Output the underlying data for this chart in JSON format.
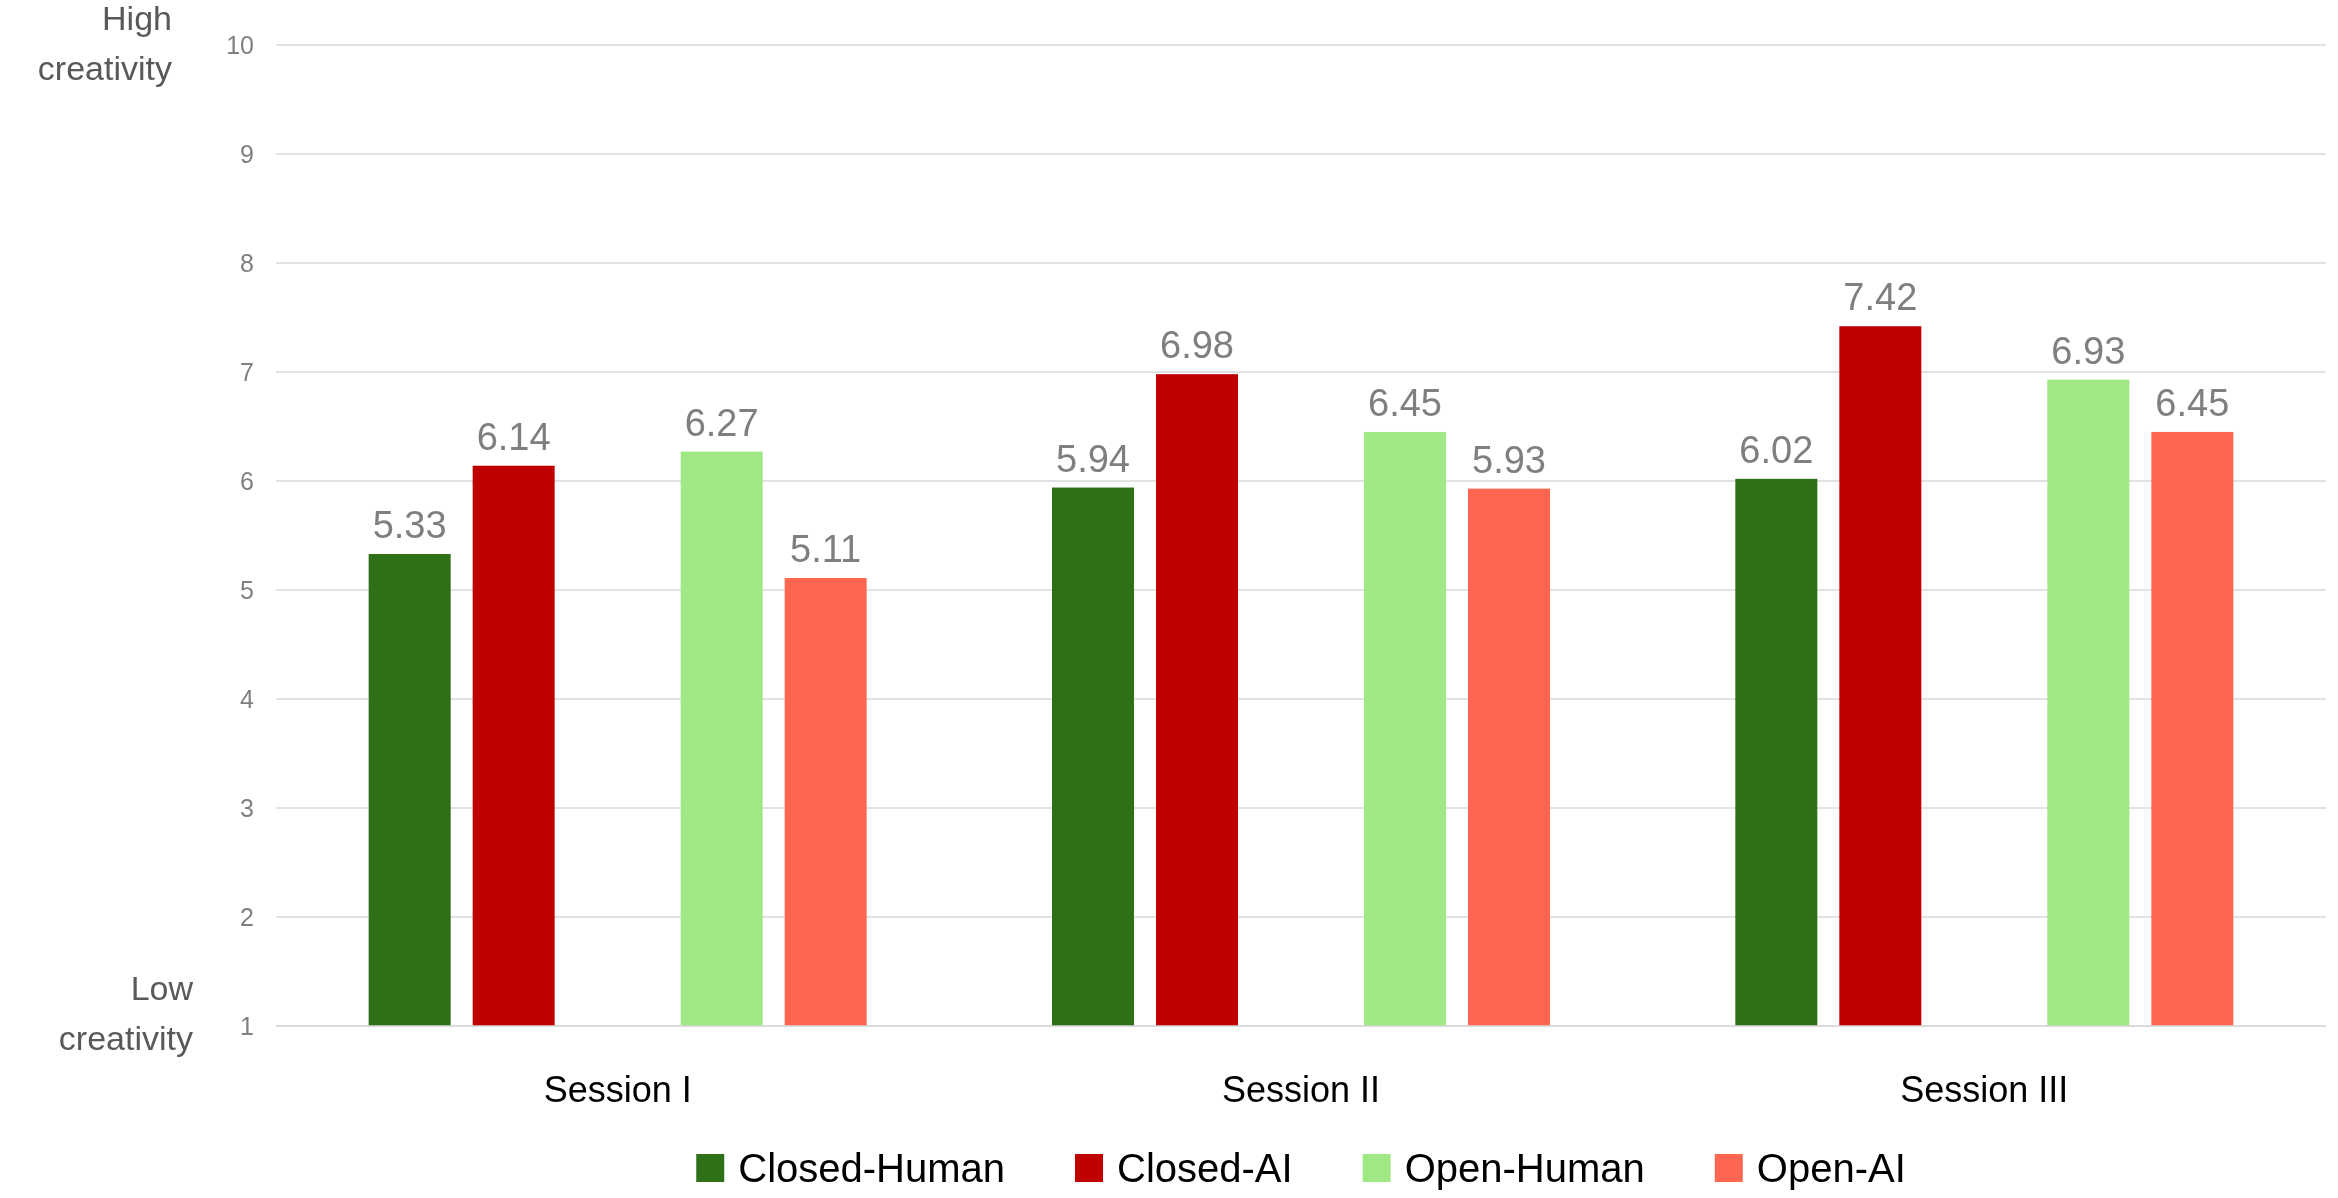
{
  "chart_data": {
    "type": "bar",
    "categories": [
      "Session I",
      "Session II",
      "Session III"
    ],
    "series": [
      {
        "name": "Closed-Human",
        "color": "#2e7018",
        "values": [
          5.33,
          5.94,
          6.02
        ]
      },
      {
        "name": "Closed-AI",
        "color": "#c00000",
        "values": [
          6.14,
          6.98,
          7.42
        ]
      },
      {
        "name": "Open-Human",
        "color": "#a0e884",
        "values": [
          6.27,
          6.45,
          6.93
        ]
      },
      {
        "name": "Open-AI",
        "color": "#ff6652",
        "values": [
          5.11,
          5.93,
          6.45
        ]
      }
    ],
    "ylim": [
      1,
      10
    ],
    "yticks": [
      1,
      2,
      3,
      4,
      5,
      6,
      7,
      8,
      9,
      10
    ],
    "grid": "y",
    "legend": "bottom",
    "data_labels": true,
    "annotations": [
      "High creativity",
      "Low creativity"
    ]
  }
}
